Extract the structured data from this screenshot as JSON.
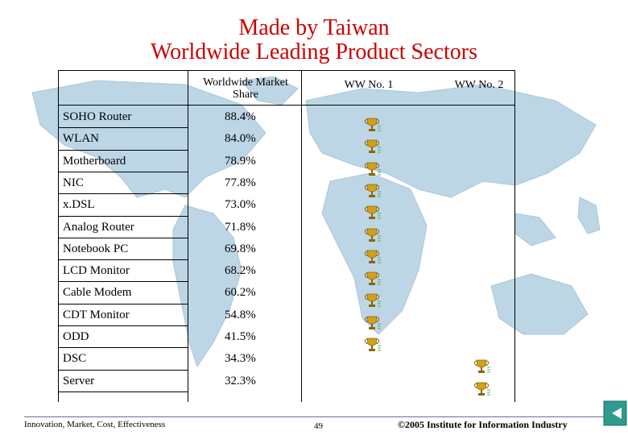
{
  "title": {
    "line1": "Made by Taiwan",
    "line2": "Worldwide Leading Product Sectors"
  },
  "columns": {
    "market_share": "Worldwide Market Share",
    "ww_no1": "WW No. 1",
    "ww_no2": "WW No. 2"
  },
  "rows": [
    {
      "product": "SOHO Router",
      "share": "88.4%",
      "rank": "WW No. 1"
    },
    {
      "product": "WLAN",
      "share": "84.0%",
      "rank": "WW No. 1"
    },
    {
      "product": "Motherboard",
      "share": "78.9%",
      "rank": "WW No. 1"
    },
    {
      "product": "NIC",
      "share": "77.8%",
      "rank": "WW No. 1"
    },
    {
      "product": "x.DSL",
      "share": "73.0%",
      "rank": "WW No. 1"
    },
    {
      "product": "Analog Router",
      "share": "71.8%",
      "rank": "WW No. 1"
    },
    {
      "product": "Notebook PC",
      "share": "69.8%",
      "rank": "WW No. 1"
    },
    {
      "product": "LCD Monitor",
      "share": "68.2%",
      "rank": "WW No. 1"
    },
    {
      "product": "Cable Modem",
      "share": "60.2%",
      "rank": "WW No. 1"
    },
    {
      "product": "CDT Monitor",
      "share": "54.8%",
      "rank": "WW No. 1"
    },
    {
      "product": "ODD",
      "share": "41.5%",
      "rank": "WW No. 1"
    },
    {
      "product": "DSC",
      "share": "34.3%",
      "rank": "WW No. 2"
    },
    {
      "product": "Server",
      "share": "32.3%",
      "rank": "WW No. 2"
    }
  ],
  "footer": {
    "left": "Innovation, Market, Cost, Effectiveness",
    "page": "49",
    "copyright": "©2005 Institute for Information Industry"
  },
  "colors": {
    "title": "#cc0000",
    "map": "#bcd6e6",
    "trophy": "#d4a017"
  }
}
